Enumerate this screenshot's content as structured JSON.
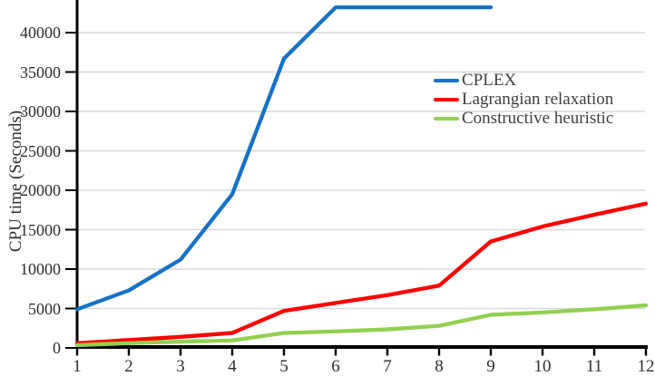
{
  "chart_data": {
    "type": "line",
    "title": "",
    "xlabel": "",
    "ylabel": "CPU time (Seconds)",
    "x_ticks": [
      1,
      2,
      3,
      4,
      5,
      6,
      7,
      8,
      9,
      10,
      11,
      12
    ],
    "y_ticks": [
      0,
      5000,
      10000,
      15000,
      20000,
      25000,
      30000,
      35000,
      40000
    ],
    "xlim": [
      1,
      12
    ],
    "ylim": [
      0,
      44200
    ],
    "grid": true,
    "legend_position": "upper-right-inside",
    "series": [
      {
        "name": "CPLEX",
        "color": "#1672C6",
        "x": [
          1,
          2,
          3,
          4,
          5,
          6,
          7,
          8,
          9
        ],
        "values": [
          4900,
          7300,
          11200,
          19500,
          36700,
          43200,
          43200,
          43200,
          43200
        ]
      },
      {
        "name": "Lagrangian relaxation",
        "color": "#FF0000",
        "x": [
          1,
          2,
          3,
          4,
          5,
          6,
          7,
          8,
          9,
          10,
          11,
          12
        ],
        "values": [
          600,
          1000,
          1400,
          1900,
          4700,
          5700,
          6700,
          7900,
          13500,
          15400,
          16900,
          18300
        ]
      },
      {
        "name": "Constructive heuristic",
        "color": "#92D050",
        "x": [
          1,
          2,
          3,
          4,
          5,
          6,
          7,
          8,
          9,
          10,
          11,
          12
        ],
        "values": [
          350,
          600,
          800,
          950,
          1900,
          2100,
          2350,
          2800,
          4200,
          4500,
          4900,
          5400
        ]
      }
    ],
    "colors": {
      "grid": "#D9D9D9",
      "axis": "#000000",
      "text": "#2E2E2E",
      "legend_text": "#3F3F3F",
      "background": "#FFFFFF"
    }
  }
}
